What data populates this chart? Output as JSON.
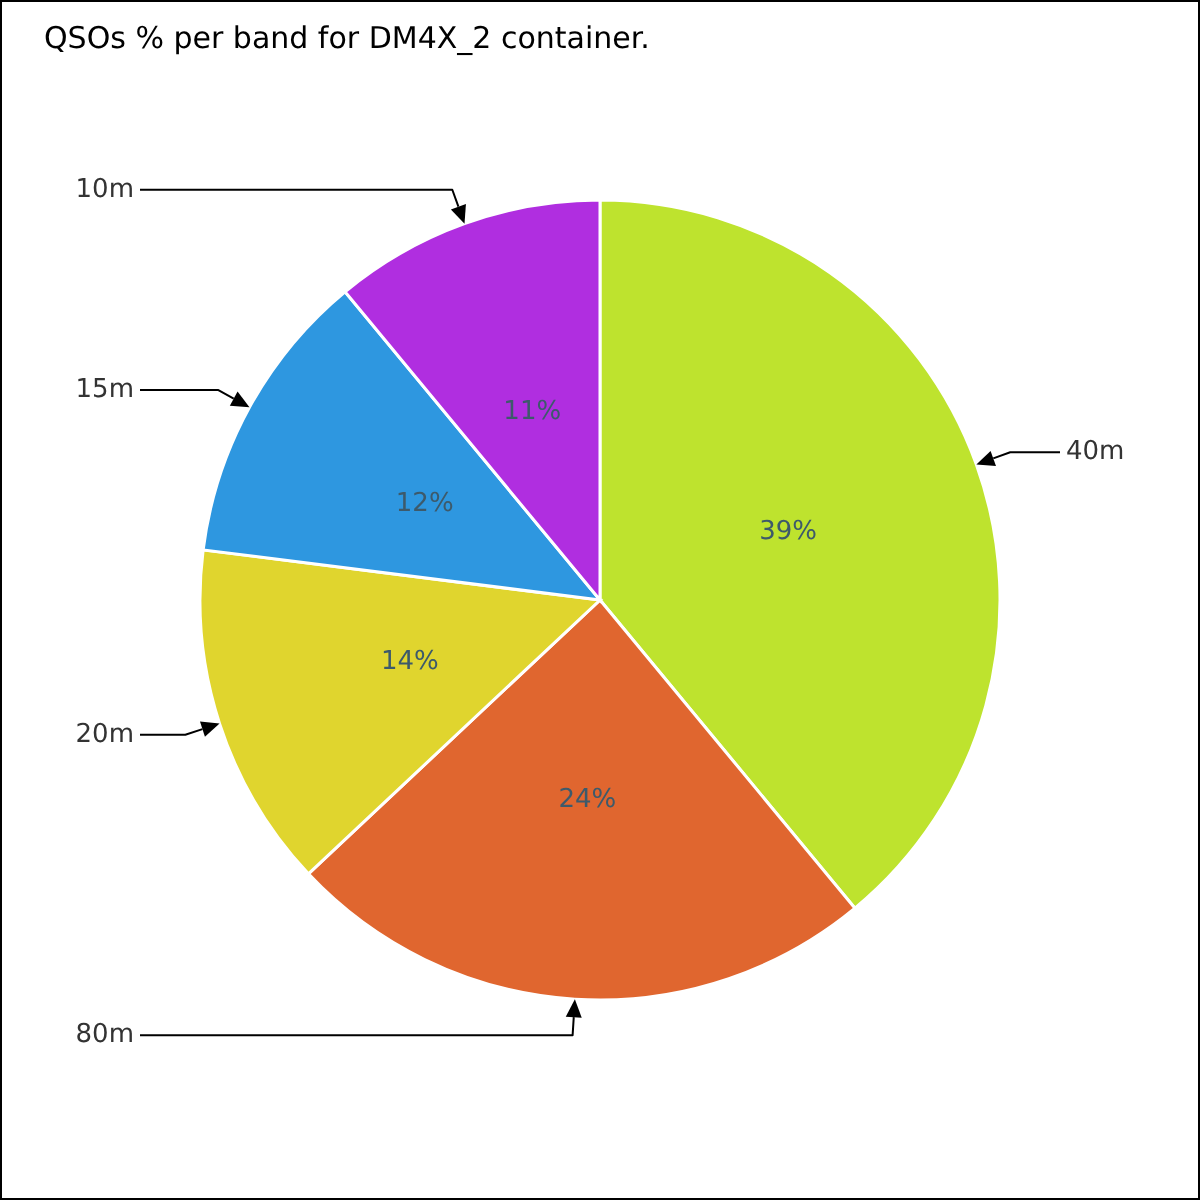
{
  "chart_data": {
    "type": "pie",
    "title": "QSOs % per band for DM4X_2 container.",
    "categories": [
      "40m",
      "80m",
      "20m",
      "15m",
      "10m"
    ],
    "values": [
      39,
      24,
      14,
      12,
      11
    ],
    "value_labels": [
      "39%",
      "24%",
      "14%",
      "12%",
      "11%"
    ],
    "colors": [
      "#bee32e",
      "#e0662f",
      "#e0d52e",
      "#2e97e0",
      "#b02ee0"
    ]
  }
}
